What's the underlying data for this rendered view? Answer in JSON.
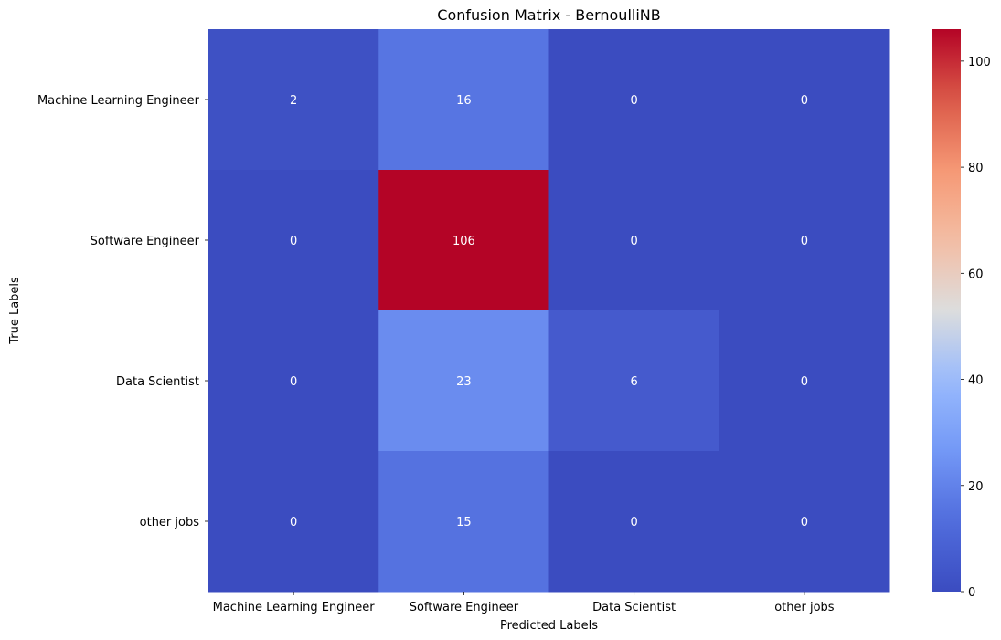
{
  "chart_data": {
    "type": "heatmap",
    "title": "Confusion Matrix - BernoulliNB",
    "xlabel": "Predicted Labels",
    "ylabel": "True Labels",
    "x_categories": [
      "Machine Learning Engineer",
      "Software Engineer",
      "Data Scientist",
      "other jobs"
    ],
    "y_categories": [
      "Machine Learning Engineer",
      "Software Engineer",
      "Data Scientist",
      "other jobs"
    ],
    "values": [
      [
        2,
        16,
        0,
        0
      ],
      [
        0,
        106,
        0,
        0
      ],
      [
        0,
        23,
        6,
        0
      ],
      [
        0,
        15,
        0,
        0
      ]
    ],
    "colormap": "coolwarm",
    "vmin": 0,
    "vmax": 106,
    "colorbar_ticks": [
      0,
      20,
      40,
      60,
      80,
      100
    ],
    "grid": false,
    "annotations": true
  }
}
